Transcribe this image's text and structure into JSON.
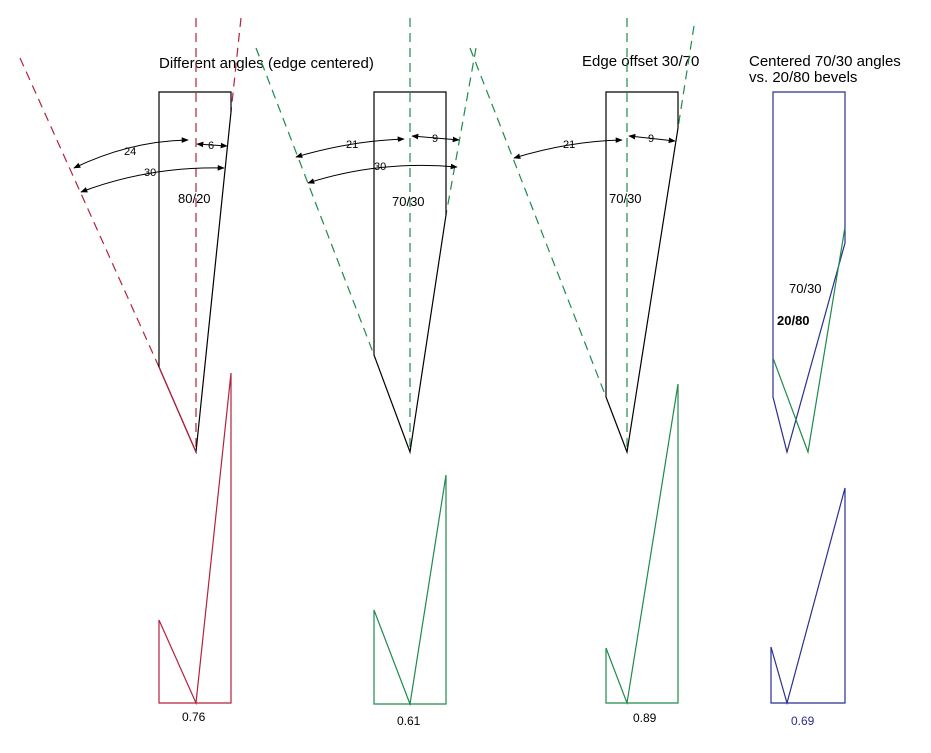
{
  "titles": {
    "different_angles": "Different angles (edge centered)",
    "edge_offset": "Edge offset 30/70",
    "centered_line1": "Centered 70/30 angles",
    "centered_line2": "vs. 20/80 bevels"
  },
  "colors": {
    "crimson": "#b5213b",
    "green": "#1f8a4c",
    "navy": "#2a2f8f",
    "navy_bold": "#183a8a",
    "black": "#000000"
  },
  "knives": [
    {
      "ratio_label": "80/20",
      "angles": [
        {
          "label": "24"
        },
        {
          "label": "6"
        },
        {
          "label": "30"
        }
      ],
      "value_label": "0.76"
    },
    {
      "ratio_label": "70/30",
      "angles": [
        {
          "label": "21"
        },
        {
          "label": "9"
        },
        {
          "label": "30"
        }
      ],
      "value_label": "0.61"
    },
    {
      "ratio_label": "70/30",
      "angles": [
        {
          "label": "21"
        },
        {
          "label": "9"
        }
      ],
      "value_label": "0.89"
    },
    {
      "label_green": "70/30",
      "label_navy": "20/80",
      "value_label": "0.69"
    }
  ]
}
